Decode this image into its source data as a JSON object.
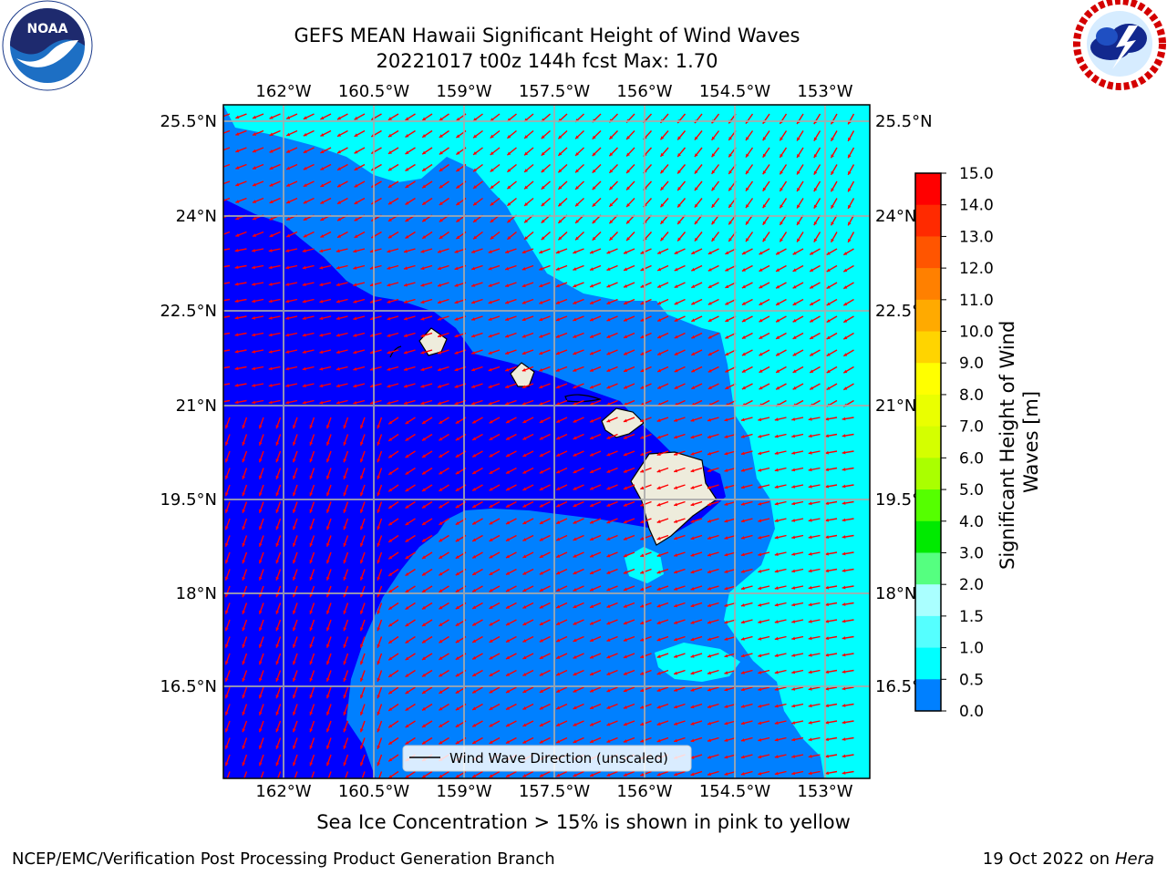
{
  "header": {
    "title_line1": "GEFS MEAN Hawaii Significant Height of Wind Waves",
    "title_line2": "20221017 t00z 144h fcst   Max: 1.70"
  },
  "logos": {
    "left": {
      "name": "noaa-logo",
      "text": "NOAA",
      "ring_text": "NATIONAL OCEANIC AND ATMOSPHERIC ADMINISTRATION · U.S. DEPARTMENT OF COMMERCE"
    },
    "right": {
      "name": "nws-logo",
      "ring_text": "NATIONAL WEATHER SERVICE"
    }
  },
  "map": {
    "lon_labels": [
      "162°W",
      "160.5°W",
      "159°W",
      "157.5°W",
      "156°W",
      "154.5°W",
      "153°W"
    ],
    "lat_labels": [
      "25.5°N",
      "24°N",
      "22.5°N",
      "21°N",
      "19.5°N",
      "18°N",
      "16.5°N"
    ],
    "legend_label": "Wind Wave Direction (unscaled)",
    "arrow_color": "#ff0000",
    "ocean_colors": {
      "0.0-0.5": "#0000ff",
      "0.5-1.0": "#0080ff",
      "1.0-1.5": "#00ffff",
      "land": "#eeecdc"
    }
  },
  "colorbar": {
    "label": "Significant Height of Wind Waves [m]",
    "ticks": [
      "15.0",
      "14.0",
      "13.0",
      "12.0",
      "11.0",
      "10.0",
      "9.0",
      "8.0",
      "7.0",
      "6.0",
      "5.0",
      "4.0",
      "3.0",
      "2.0",
      "1.5",
      "1.0",
      "0.5",
      "0.0"
    ],
    "colors": [
      "#ff0000",
      "#ff2a00",
      "#ff5500",
      "#ff8000",
      "#ffaa00",
      "#ffd400",
      "#ffff00",
      "#eaff00",
      "#d4ff00",
      "#aaff00",
      "#55ff00",
      "#00ea00",
      "#55ff80",
      "#aaffff",
      "#55ffff",
      "#00ffff",
      "#0080ff",
      "#0000ff"
    ]
  },
  "notes": {
    "sea_ice": "Sea Ice Concentration > 15% is shown in pink to yellow"
  },
  "footer": {
    "left": "NCEP/EMC/Verification Post Processing Product Generation Branch",
    "date": "19 Oct 2022 on ",
    "machine": "Hera"
  }
}
